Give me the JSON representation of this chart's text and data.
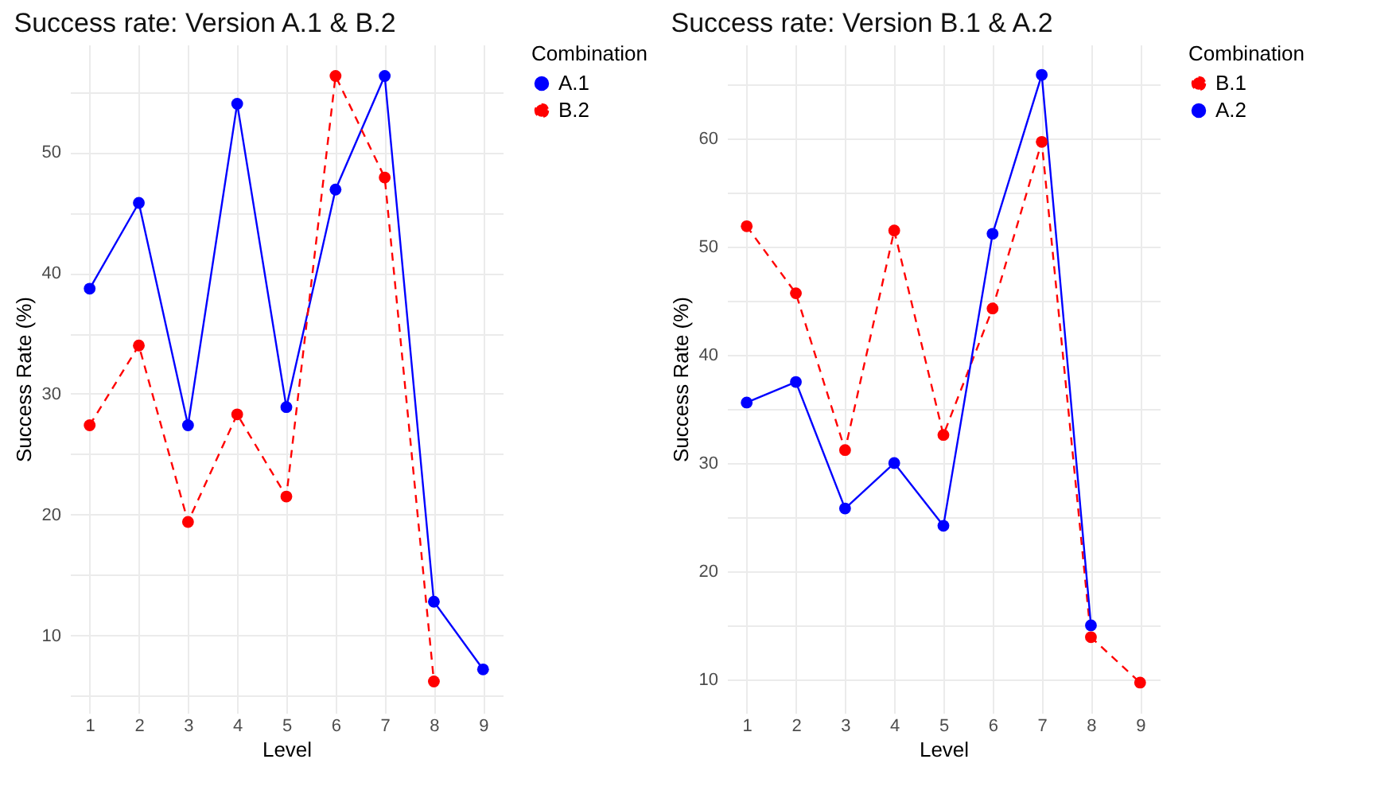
{
  "chart_data": [
    {
      "type": "line",
      "title": "Success rate: Version A.1 & B.2",
      "xlabel": "Level",
      "ylabel": "Success Rate (%)",
      "legend_title": "Combination",
      "legend": "right",
      "grid": true,
      "marker": "circle",
      "x": [
        1,
        2,
        3,
        4,
        5,
        6,
        7,
        8,
        9
      ],
      "xlim": [
        0.6,
        9.4
      ],
      "xticks": [
        1,
        2,
        3,
        4,
        5,
        6,
        7,
        8,
        9
      ],
      "ylim": [
        3.6,
        58.9
      ],
      "yticks": [
        {
          "value": 5,
          "label": null
        },
        10,
        {
          "value": 15,
          "label": null
        },
        20,
        {
          "value": 25,
          "label": null
        },
        30,
        {
          "value": 35,
          "label": null
        },
        40,
        {
          "value": 45,
          "label": null
        },
        50,
        {
          "value": 55,
          "label": null
        }
      ],
      "series": [
        {
          "name": "A.1",
          "color": "#0000ff",
          "line_style": "solid",
          "values": [
            38.7,
            45.8,
            27.4,
            54.0,
            28.9,
            46.9,
            56.3,
            12.8,
            7.2
          ]
        },
        {
          "name": "B.2",
          "color": "#ff0000",
          "line_style": "dashed",
          "values": [
            27.4,
            34.0,
            19.4,
            28.3,
            21.5,
            56.3,
            47.9,
            6.2,
            null
          ]
        }
      ]
    },
    {
      "type": "line",
      "title": "Success rate: Version B.1 & A.2",
      "xlabel": "Level",
      "ylabel": "Success Rate (%)",
      "legend_title": "Combination",
      "legend": "right",
      "grid": true,
      "marker": "circle",
      "x": [
        1,
        2,
        3,
        4,
        5,
        6,
        7,
        8,
        9
      ],
      "xlim": [
        0.6,
        9.4
      ],
      "xticks": [
        1,
        2,
        3,
        4,
        5,
        6,
        7,
        8,
        9
      ],
      "ylim": [
        6.9,
        68.7
      ],
      "yticks": [
        10,
        {
          "value": 15,
          "label": null
        },
        20,
        {
          "value": 25,
          "label": null
        },
        30,
        {
          "value": 35,
          "label": null
        },
        40,
        {
          "value": 45,
          "label": null
        },
        50,
        {
          "value": 55,
          "label": null
        },
        60,
        {
          "value": 65,
          "label": null
        }
      ],
      "series": [
        {
          "name": "B.1",
          "color": "#ff0000",
          "line_style": "dashed",
          "values": [
            51.9,
            45.7,
            31.2,
            51.5,
            32.6,
            44.3,
            59.7,
            13.9,
            9.7
          ]
        },
        {
          "name": "A.2",
          "color": "#0000ff",
          "line_style": "solid",
          "values": [
            35.6,
            37.5,
            25.8,
            30.0,
            24.2,
            51.2,
            65.9,
            15.0,
            null
          ]
        }
      ]
    }
  ]
}
